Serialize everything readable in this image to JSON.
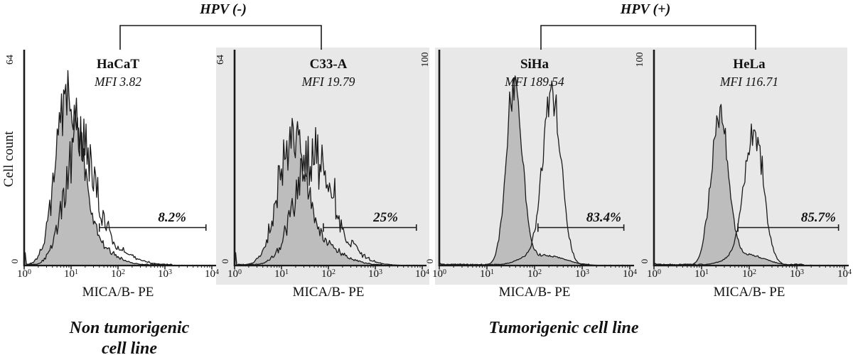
{
  "figure": {
    "group_labels": {
      "negative": "HPV (-)",
      "positive": "HPV (+)"
    },
    "y_axis_title": "Cell count",
    "captions": {
      "left": [
        "Non tumorigenic",
        "cell line"
      ],
      "right": "Tumorigenic cell line"
    },
    "colors": {
      "panel_background": "#e8e8e8",
      "histogram_fill": "#bdbdbd",
      "line_color": "#1a1a1a"
    }
  },
  "chart_data": [
    {
      "type": "area",
      "cell_line": "HaCaT",
      "hpv_status": "HPV (-)",
      "tumorigenicity": "Non tumorigenic cell line",
      "mfi": 3.82,
      "mfi_text": "MFI 3.82",
      "x_label": "MICA/B- PE",
      "x_scale": "log10",
      "x_range": [
        1,
        10000
      ],
      "x_tick_exponents": [
        0,
        1,
        2,
        3,
        4
      ],
      "y_axis_max_label": "64",
      "y_axis_min_label": "0",
      "y_max": 64,
      "gate": {
        "label": "8.2%",
        "percent": 8.2,
        "from": 40,
        "to": 7500
      },
      "curves": [
        {
          "name": "control-filled",
          "style": "filled",
          "peak_x": 9,
          "peak_height_frac": 0.74,
          "shape": {
            "log_center": 0.95,
            "log_sigma": 0.27,
            "tail_center": 1.4,
            "tail_sigma": 0.45,
            "tail_height_frac": 0.1,
            "noise": 0.2,
            "edge_frac": 0.06,
            "seed": 7
          }
        },
        {
          "name": "mica-b-pe-open",
          "style": "open",
          "peak_x": 14,
          "peak_height_frac": 0.55,
          "shape": {
            "log_center": 1.17,
            "log_sigma": 0.3,
            "tail_center": 1.7,
            "tail_sigma": 0.5,
            "tail_height_frac": 0.09,
            "noise": 0.24,
            "edge_frac": 0.05,
            "seed": 13
          }
        }
      ]
    },
    {
      "type": "area",
      "cell_line": "C33-A",
      "hpv_status": "HPV (-)",
      "tumorigenicity": "Tumorigenic cell line",
      "mfi": 19.79,
      "mfi_text": "MFI 19.79",
      "x_label": "MICA/B- PE",
      "x_scale": "log10",
      "x_range": [
        1,
        10000
      ],
      "x_tick_exponents": [
        0,
        1,
        2,
        3,
        4
      ],
      "y_axis_max_label": "64",
      "y_axis_min_label": "0",
      "y_max": 64,
      "gate": {
        "label": "25%",
        "percent": 25,
        "from": 78,
        "to": 7500
      },
      "curves": [
        {
          "name": "control-filled",
          "style": "filled",
          "peak_x": 17,
          "peak_height_frac": 0.53,
          "shape": {
            "log_center": 1.22,
            "log_sigma": 0.3,
            "tail_center": 1.75,
            "tail_sigma": 0.5,
            "tail_height_frac": 0.1,
            "noise": 0.22,
            "edge_frac": 0.06,
            "seed": 21
          }
        },
        {
          "name": "mica-b-pe-open",
          "style": "open",
          "peak_x": 45,
          "peak_height_frac": 0.47,
          "shape": {
            "log_center": 1.65,
            "log_sigma": 0.38,
            "tail_center": 2.25,
            "tail_sigma": 0.45,
            "tail_height_frac": 0.07,
            "noise": 0.26,
            "edge_frac": 0.05,
            "seed": 29
          }
        }
      ]
    },
    {
      "type": "area",
      "cell_line": "SiHa",
      "hpv_status": "HPV (+)",
      "tumorigenicity": "Tumorigenic cell line",
      "mfi": 189.54,
      "mfi_text": "MFI 189.54",
      "x_label": "MICA/B- PE",
      "x_scale": "log10",
      "x_range": [
        1,
        10000
      ],
      "x_tick_exponents": [
        0,
        1,
        2,
        3,
        4
      ],
      "y_axis_max_label": "100",
      "y_axis_min_label": "0",
      "y_max": 100,
      "gate": {
        "label": "83.4%",
        "percent": 83.4,
        "from": 118,
        "to": 7500
      },
      "curves": [
        {
          "name": "control-filled",
          "style": "filled",
          "peak_x": 38,
          "peak_height_frac": 0.82,
          "shape": {
            "log_center": 1.58,
            "log_sigma": 0.17,
            "tail_center": 2.25,
            "tail_sigma": 0.4,
            "tail_height_frac": 0.045,
            "noise": 0.09,
            "edge_frac": 0.01,
            "seed": 37
          }
        },
        {
          "name": "mica-b-pe-open",
          "style": "open",
          "peak_x": 234,
          "peak_height_frac": 0.77,
          "shape": {
            "log_center": 2.37,
            "log_sigma": 0.19,
            "tail_center": 2.05,
            "tail_sigma": 0.35,
            "tail_height_frac": 0.05,
            "noise": 0.11,
            "edge_frac": 0.01,
            "seed": 43
          }
        }
      ]
    },
    {
      "type": "area",
      "cell_line": "HeLa",
      "hpv_status": "HPV (+)",
      "tumorigenicity": "Tumorigenic cell line",
      "mfi": 116.71,
      "mfi_text": "MFI 116.71",
      "x_label": "MICA/B- PE",
      "x_scale": "log10",
      "x_range": [
        1,
        10000
      ],
      "x_tick_exponents": [
        0,
        1,
        2,
        3,
        4
      ],
      "y_axis_max_label": "100",
      "y_axis_min_label": "0",
      "y_max": 100,
      "gate": {
        "label": "85.7%",
        "percent": 85.7,
        "from": 58,
        "to": 7500
      },
      "curves": [
        {
          "name": "control-filled",
          "style": "filled",
          "peak_x": 24,
          "peak_height_frac": 0.7,
          "shape": {
            "log_center": 1.38,
            "log_sigma": 0.18,
            "tail_center": 1.95,
            "tail_sigma": 0.38,
            "tail_height_frac": 0.05,
            "noise": 0.1,
            "edge_frac": 0.01,
            "seed": 51
          }
        },
        {
          "name": "mica-b-pe-open",
          "style": "open",
          "peak_x": 126,
          "peak_height_frac": 0.59,
          "shape": {
            "log_center": 2.1,
            "log_sigma": 0.2,
            "tail_center": 1.82,
            "tail_sigma": 0.35,
            "tail_height_frac": 0.04,
            "noise": 0.12,
            "edge_frac": 0.01,
            "seed": 57
          }
        }
      ]
    }
  ]
}
